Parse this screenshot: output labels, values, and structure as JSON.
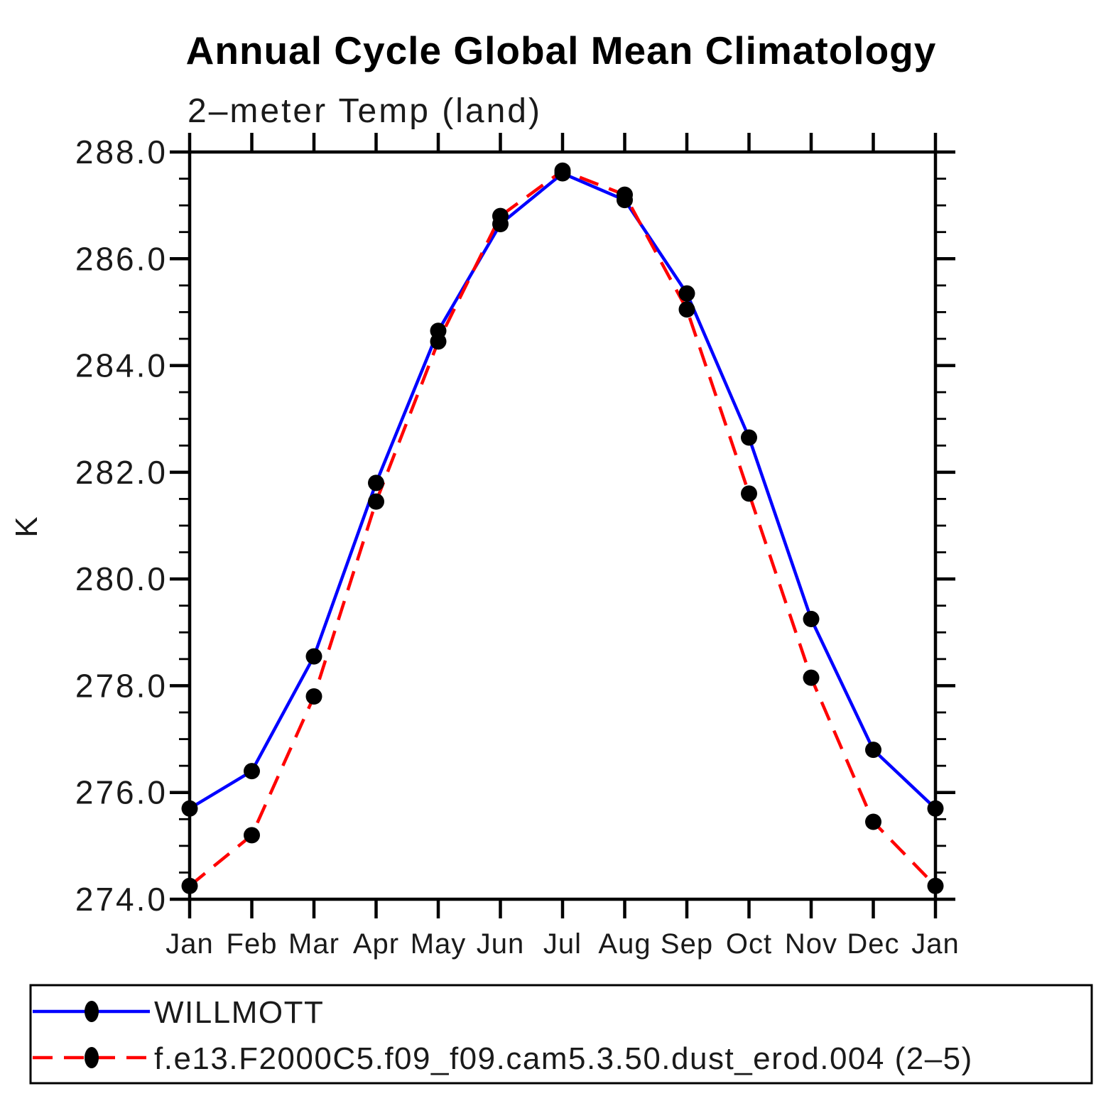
{
  "chart_data": {
    "type": "line",
    "title": "Annual Cycle Global Mean Climatology",
    "subtitle": "2–meter Temp (land)",
    "ylabel": "K",
    "xlabel": "",
    "categories": [
      "Jan",
      "Feb",
      "Mar",
      "Apr",
      "May",
      "Jun",
      "Jul",
      "Aug",
      "Sep",
      "Oct",
      "Nov",
      "Dec",
      "Jan"
    ],
    "series": [
      {
        "name": "WILLMOTT",
        "color": "#0000ff",
        "line_style": "solid",
        "marker": "filled-circle",
        "marker_color": "#000000",
        "values": [
          275.7,
          276.4,
          278.55,
          281.8,
          284.65,
          286.65,
          287.6,
          287.1,
          285.35,
          282.65,
          279.25,
          276.8,
          275.7
        ]
      },
      {
        "name": "f.e13.F2000C5.f09_f09.cam5.3.50.dust_erod.004 (2–5)",
        "color": "#ff0000",
        "line_style": "dashed",
        "marker": "filled-circle",
        "marker_color": "#000000",
        "values": [
          274.25,
          275.2,
          277.8,
          281.45,
          284.45,
          286.8,
          287.65,
          287.2,
          285.05,
          281.6,
          278.15,
          275.45,
          274.25
        ]
      }
    ],
    "ylim": [
      274.0,
      288.0
    ],
    "ytick_step": 2.0,
    "yminor_step": 0.5,
    "ytick_labels": [
      "274.0",
      "276.0",
      "278.0",
      "280.0",
      "282.0",
      "284.0",
      "286.0",
      "288.0"
    ],
    "grid": false,
    "frame": "box-with-outward-ticks",
    "legend_position": "bottom-left-box",
    "axis_color": "#000000",
    "background_color": "#ffffff"
  }
}
